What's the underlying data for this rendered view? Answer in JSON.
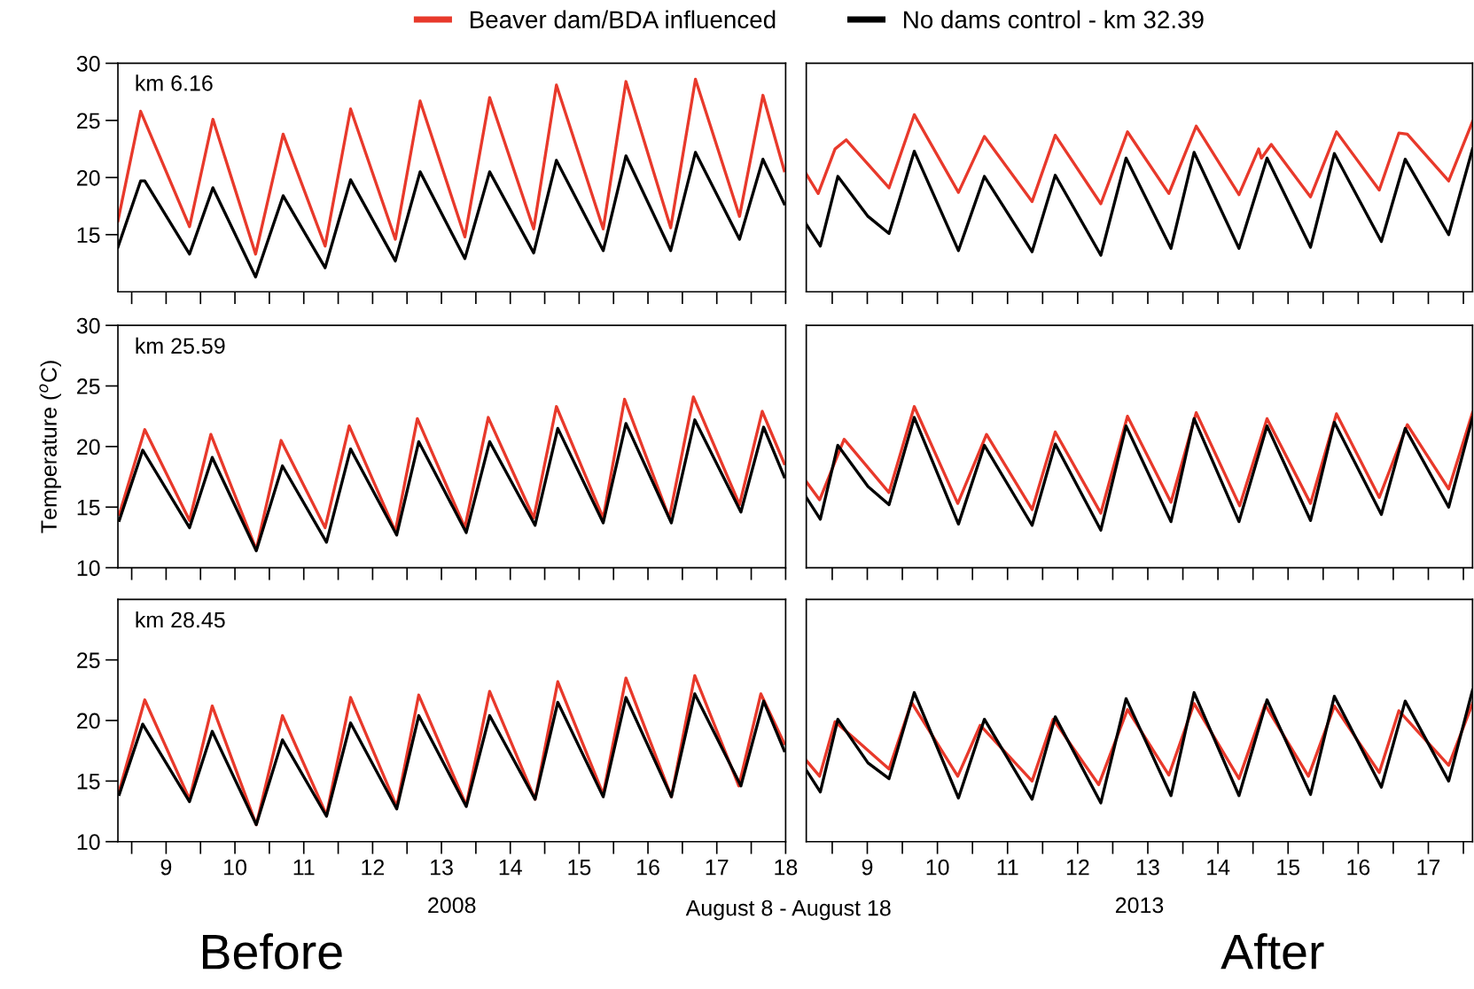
{
  "chart_data": [
    {
      "type": "line",
      "legend": "top",
      "annotations": [
        "km 6.16"
      ],
      "xlim": [
        8.3,
        18
      ],
      "ylim": [
        10,
        30
      ],
      "yticks": [
        15,
        20,
        25,
        30
      ],
      "tick_labels": "y",
      "xticks": [
        {
          "value": 8.5,
          "label": null
        },
        9,
        {
          "value": 9.5,
          "label": null
        },
        10,
        {
          "value": 10.5,
          "label": null
        },
        11,
        {
          "value": 11.5,
          "label": null
        },
        12,
        {
          "value": 12.5,
          "label": null
        },
        13,
        {
          "value": 13.5,
          "label": null
        },
        14,
        {
          "value": 14.5,
          "label": null
        },
        15,
        {
          "value": 15.5,
          "label": null
        },
        16,
        {
          "value": 16.5,
          "label": null
        },
        17,
        {
          "value": 17.5,
          "label": null
        },
        18
      ],
      "series": [
        {
          "name": "Beaver dam/BDA influenced",
          "color": "#e8392b",
          "x": [
            8.3,
            8.63,
            9.34,
            9.68,
            10.3,
            10.7,
            11.31,
            11.68,
            12.33,
            12.69,
            13.34,
            13.7,
            14.34,
            14.67,
            15.35,
            15.68,
            16.33,
            16.69,
            17.33,
            17.67,
            17.98
          ],
          "values": [
            16.2,
            25.8,
            15.7,
            25.1,
            13.3,
            23.8,
            14.0,
            26.0,
            14.6,
            26.7,
            14.8,
            27.0,
            15.5,
            28.1,
            15.5,
            28.4,
            15.6,
            28.6,
            16.6,
            27.2,
            20.6
          ]
        },
        {
          "name": "No dams control - km 32.39",
          "color": "#000000",
          "x": [
            8.3,
            8.63,
            8.69,
            9.34,
            9.68,
            10.3,
            10.7,
            11.31,
            11.68,
            12.33,
            12.69,
            13.34,
            13.7,
            14.34,
            14.67,
            15.35,
            15.68,
            16.33,
            16.69,
            17.33,
            17.67,
            17.98
          ],
          "values": [
            13.9,
            19.7,
            19.7,
            13.3,
            19.1,
            11.3,
            18.4,
            12.1,
            19.8,
            12.7,
            20.5,
            12.9,
            20.5,
            13.4,
            21.5,
            13.6,
            21.9,
            13.6,
            22.2,
            14.6,
            21.6,
            17.7
          ]
        }
      ]
    },
    {
      "type": "line",
      "xlim": [
        8.13,
        17.63
      ],
      "ylim": [
        10,
        30
      ],
      "tick_labels": false,
      "xticks": [
        {
          "value": 8.5,
          "label": null
        },
        9,
        {
          "value": 9.5,
          "label": null
        },
        10,
        {
          "value": 10.5,
          "label": null
        },
        11,
        {
          "value": 11.5,
          "label": null
        },
        12,
        {
          "value": 12.5,
          "label": null
        },
        13,
        {
          "value": 13.5,
          "label": null
        },
        14,
        {
          "value": 14.5,
          "label": null
        },
        15,
        {
          "value": 15.5,
          "label": null
        },
        16,
        {
          "value": 16.5,
          "label": null
        },
        17,
        {
          "value": 17.5,
          "label": null
        }
      ],
      "series": [
        {
          "color": "#e8392b",
          "x": [
            8.13,
            8.3,
            8.54,
            8.7,
            9.31,
            9.67,
            10.3,
            10.67,
            11.35,
            11.68,
            12.33,
            12.71,
            13.3,
            13.69,
            14.3,
            14.58,
            14.62,
            14.76,
            15.32,
            15.69,
            16.3,
            16.58,
            16.7,
            17.29,
            17.63
          ],
          "values": [
            20.3,
            18.6,
            22.5,
            23.3,
            19.1,
            25.5,
            18.7,
            23.6,
            17.9,
            23.7,
            17.7,
            24.0,
            18.6,
            24.5,
            18.5,
            22.5,
            21.7,
            22.9,
            18.3,
            24.0,
            18.9,
            23.9,
            23.8,
            19.7,
            24.9
          ]
        },
        {
          "color": "#000000",
          "x": [
            8.13,
            8.33,
            8.58,
            9.01,
            9.31,
            9.67,
            10.3,
            10.67,
            11.35,
            11.68,
            12.33,
            12.69,
            13.33,
            13.66,
            14.3,
            14.7,
            15.32,
            15.66,
            16.33,
            16.67,
            17.29,
            17.63
          ],
          "values": [
            15.9,
            14.0,
            20.1,
            16.6,
            15.1,
            22.3,
            13.6,
            20.1,
            13.5,
            20.2,
            13.2,
            21.7,
            13.8,
            22.2,
            13.8,
            21.7,
            13.9,
            22.1,
            14.4,
            21.6,
            15.0,
            22.5
          ]
        }
      ]
    },
    {
      "type": "line",
      "annotations": [
        "km 25.59"
      ],
      "ylabel": "Temperature ($^{o}$C)",
      "xlim": [
        8.3,
        18
      ],
      "ylim": [
        10,
        30
      ],
      "yticks": [
        10,
        15,
        20,
        25,
        30
      ],
      "tick_labels": "y",
      "xticks": [
        {
          "value": 8.5,
          "label": null
        },
        9,
        {
          "value": 9.5,
          "label": null
        },
        10,
        {
          "value": 10.5,
          "label": null
        },
        11,
        {
          "value": 11.5,
          "label": null
        },
        12,
        {
          "value": 12.5,
          "label": null
        },
        13,
        {
          "value": 13.5,
          "label": null
        },
        14,
        {
          "value": 14.5,
          "label": null
        },
        15,
        {
          "value": 15.5,
          "label": null
        },
        16,
        {
          "value": 16.5,
          "label": null
        },
        17,
        {
          "value": 17.5,
          "label": null
        },
        18
      ],
      "series": [
        {
          "color": "#e8392b",
          "x": [
            8.32,
            8.69,
            9.34,
            9.65,
            10.31,
            10.67,
            11.31,
            11.66,
            12.33,
            12.65,
            13.34,
            13.68,
            14.34,
            14.67,
            15.35,
            15.66,
            16.31,
            16.66,
            17.33,
            17.66,
            17.98
          ],
          "values": [
            14.4,
            21.4,
            13.9,
            21.0,
            11.5,
            20.5,
            13.3,
            21.7,
            13.0,
            22.3,
            13.3,
            22.4,
            14.1,
            23.3,
            14.1,
            23.9,
            14.1,
            24.1,
            15.2,
            22.9,
            18.6
          ]
        },
        {
          "color": "#000000",
          "x": [
            8.32,
            8.66,
            9.34,
            9.67,
            10.31,
            10.69,
            11.33,
            11.68,
            12.35,
            12.67,
            13.36,
            13.7,
            14.36,
            14.69,
            15.35,
            15.68,
            16.34,
            16.68,
            17.35,
            17.68,
            17.98
          ],
          "values": [
            13.9,
            19.7,
            13.3,
            19.1,
            11.4,
            18.4,
            12.1,
            19.8,
            12.7,
            20.4,
            12.9,
            20.4,
            13.5,
            21.5,
            13.7,
            21.9,
            13.7,
            22.2,
            14.6,
            21.6,
            17.5
          ]
        }
      ]
    },
    {
      "type": "line",
      "xlim": [
        8.13,
        17.63
      ],
      "ylim": [
        10,
        30
      ],
      "tick_labels": false,
      "xticks": [
        {
          "value": 8.5,
          "label": null
        },
        9,
        {
          "value": 9.5,
          "label": null
        },
        10,
        {
          "value": 10.5,
          "label": null
        },
        11,
        {
          "value": 11.5,
          "label": null
        },
        12,
        {
          "value": 12.5,
          "label": null
        },
        13,
        {
          "value": 13.5,
          "label": null
        },
        14,
        {
          "value": 14.5,
          "label": null
        },
        15,
        {
          "value": 15.5,
          "label": null
        },
        16,
        {
          "value": 16.5,
          "label": null
        },
        17,
        {
          "value": 17.5,
          "label": null
        }
      ],
      "series": [
        {
          "color": "#e8392b",
          "x": [
            8.13,
            8.32,
            8.67,
            9.31,
            9.67,
            10.29,
            10.7,
            11.35,
            11.68,
            12.33,
            12.71,
            13.33,
            13.69,
            14.31,
            14.7,
            15.32,
            15.69,
            16.3,
            16.7,
            17.29,
            17.63
          ],
          "values": [
            17.1,
            15.6,
            20.6,
            16.2,
            23.3,
            15.3,
            21.0,
            14.8,
            21.2,
            14.5,
            22.5,
            15.4,
            22.8,
            15.1,
            22.3,
            15.3,
            22.7,
            15.8,
            21.8,
            16.5,
            22.8
          ]
        },
        {
          "color": "#000000",
          "x": [
            8.13,
            8.33,
            8.58,
            9.01,
            9.31,
            9.67,
            10.3,
            10.67,
            11.35,
            11.68,
            12.33,
            12.69,
            13.33,
            13.66,
            14.3,
            14.7,
            15.32,
            15.66,
            16.33,
            16.67,
            17.29,
            17.63
          ],
          "values": [
            15.8,
            14.0,
            20.1,
            16.7,
            15.2,
            22.4,
            13.6,
            20.1,
            13.5,
            20.2,
            13.1,
            21.7,
            13.8,
            22.3,
            13.8,
            21.7,
            13.9,
            22.0,
            14.4,
            21.5,
            15.0,
            22.4
          ]
        }
      ]
    },
    {
      "type": "line",
      "annotations": [
        "km 28.45",
        "Before",
        "August 8 - August 18"
      ],
      "xlabel": "2008",
      "xlim": [
        8.3,
        18
      ],
      "ylim": [
        10,
        30
      ],
      "yticks": [
        10,
        15,
        20,
        25
      ],
      "xticks": [
        {
          "value": 8.5,
          "label": null
        },
        9,
        {
          "value": 9.5,
          "label": null
        },
        10,
        {
          "value": 10.5,
          "label": null
        },
        11,
        {
          "value": 11.5,
          "label": null
        },
        12,
        {
          "value": 12.5,
          "label": null
        },
        13,
        {
          "value": 13.5,
          "label": null
        },
        14,
        {
          "value": 14.5,
          "label": null
        },
        15,
        {
          "value": 15.5,
          "label": null
        },
        16,
        {
          "value": 16.5,
          "label": null
        },
        17,
        {
          "value": 17.5,
          "label": null
        },
        18
      ],
      "series": [
        {
          "color": "#e8392b",
          "x": [
            8.32,
            8.69,
            9.34,
            9.67,
            10.31,
            10.69,
            11.33,
            11.68,
            12.35,
            12.67,
            13.36,
            13.7,
            14.36,
            14.69,
            15.35,
            15.68,
            16.34,
            16.68,
            17.32,
            17.64,
            17.98
          ],
          "values": [
            14.2,
            21.7,
            13.5,
            21.2,
            11.4,
            20.4,
            12.2,
            21.9,
            12.9,
            22.1,
            13.0,
            22.4,
            13.5,
            23.2,
            13.9,
            23.5,
            13.7,
            23.7,
            14.6,
            22.2,
            18.1
          ]
        },
        {
          "color": "#000000",
          "x": [
            8.32,
            8.66,
            9.34,
            9.67,
            10.31,
            10.69,
            11.33,
            11.68,
            12.35,
            12.67,
            13.36,
            13.7,
            14.36,
            14.69,
            15.35,
            15.68,
            16.34,
            16.68,
            17.35,
            17.68,
            17.98
          ],
          "values": [
            13.9,
            19.7,
            13.3,
            19.1,
            11.4,
            18.4,
            12.1,
            19.8,
            12.7,
            20.4,
            12.9,
            20.4,
            13.5,
            21.5,
            13.7,
            21.9,
            13.7,
            22.2,
            14.6,
            21.6,
            17.5
          ]
        }
      ]
    },
    {
      "type": "line",
      "annotations": [
        "After"
      ],
      "xlabel": "2013",
      "xlim": [
        8.13,
        17.63
      ],
      "ylim": [
        10,
        30
      ],
      "tick_labels": "x",
      "xticks": [
        {
          "value": 8.5,
          "label": null
        },
        9,
        {
          "value": 9.5,
          "label": null
        },
        10,
        {
          "value": 10.5,
          "label": null
        },
        11,
        {
          "value": 11.5,
          "label": null
        },
        12,
        {
          "value": 12.5,
          "label": null
        },
        13,
        {
          "value": 13.5,
          "label": null
        },
        14,
        {
          "value": 14.5,
          "label": null
        },
        15,
        {
          "value": 15.5,
          "label": null
        },
        16,
        {
          "value": 16.5,
          "label": null
        },
        17,
        {
          "value": 17.5,
          "label": null
        }
      ],
      "series": [
        {
          "color": "#e8392b",
          "x": [
            8.13,
            8.32,
            8.54,
            8.82,
            9.31,
            9.63,
            10.29,
            10.61,
            11.35,
            11.65,
            12.3,
            12.71,
            13.3,
            13.66,
            14.3,
            14.67,
            15.29,
            15.66,
            16.3,
            16.58,
            17.29,
            17.63
          ],
          "values": [
            16.7,
            15.4,
            19.9,
            18.5,
            16.0,
            21.5,
            15.4,
            19.6,
            15.0,
            20.1,
            14.7,
            20.9,
            15.5,
            21.4,
            15.2,
            21.3,
            15.4,
            21.2,
            15.7,
            20.8,
            16.3,
            21.4
          ]
        },
        {
          "color": "#000000",
          "x": [
            8.13,
            8.33,
            8.58,
            9.01,
            9.31,
            9.67,
            10.3,
            10.67,
            11.35,
            11.68,
            12.33,
            12.69,
            13.33,
            13.66,
            14.3,
            14.7,
            15.32,
            15.66,
            16.33,
            16.67,
            17.29,
            17.63
          ],
          "values": [
            15.9,
            14.1,
            20.1,
            16.5,
            15.2,
            22.3,
            13.6,
            20.1,
            13.5,
            20.3,
            13.2,
            21.8,
            13.8,
            22.3,
            13.8,
            21.7,
            13.9,
            22.0,
            14.5,
            21.6,
            15.0,
            22.5
          ]
        }
      ]
    }
  ]
}
